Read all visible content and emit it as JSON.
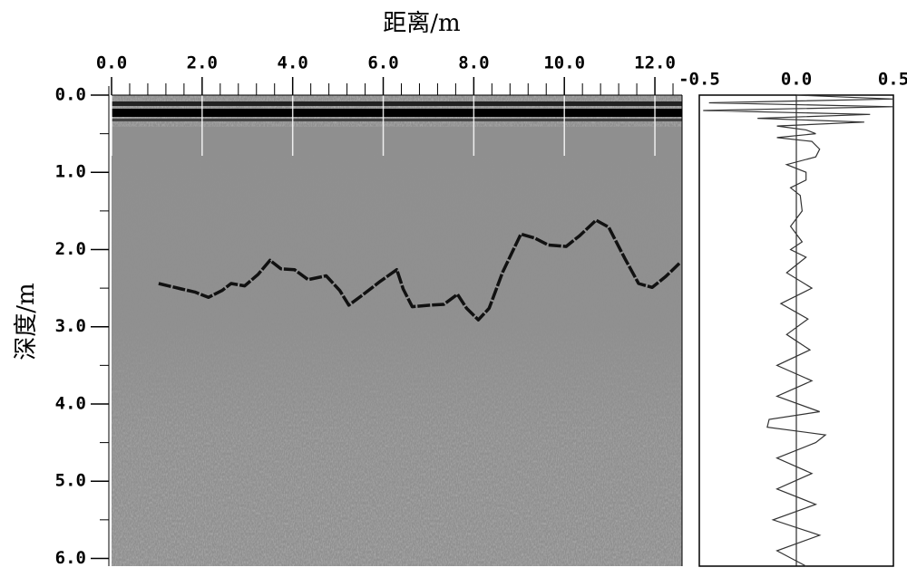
{
  "chart_data": [
    {
      "type": "line",
      "x_label": "距离/m",
      "y_label": "深度/m",
      "xlim": [
        0,
        12.6
      ],
      "ylim": [
        0,
        6.1
      ],
      "y_inverted": true,
      "xticks": [
        {
          "value": 0,
          "label": "0.0"
        },
        {
          "value": 2,
          "label": "2.0"
        },
        {
          "value": 4,
          "label": "4.0"
        },
        {
          "value": 6,
          "label": "6.0"
        },
        {
          "value": 8,
          "label": "8.0"
        },
        {
          "value": 10,
          "label": "10.0"
        },
        {
          "value": 12,
          "label": "12.0"
        }
      ],
      "yticks": [
        {
          "value": 0,
          "label": "0.0"
        },
        {
          "value": 1,
          "label": "1.0"
        },
        {
          "value": 2,
          "label": "2.0"
        },
        {
          "value": 3,
          "label": "3.0"
        },
        {
          "value": 4,
          "label": "4.0"
        },
        {
          "value": 5,
          "label": "5.0"
        },
        {
          "value": 6,
          "label": "6.0"
        }
      ],
      "color": "#111111",
      "x": [
        1.04,
        1.54,
        1.84,
        2.14,
        2.44,
        2.64,
        2.94,
        3.24,
        3.5,
        3.74,
        4.04,
        4.34,
        4.74,
        5.04,
        5.24,
        5.54,
        5.94,
        6.3,
        6.44,
        6.64,
        7.04,
        7.34,
        7.64,
        7.84,
        8.1,
        8.34,
        8.64,
        9.04,
        9.34,
        9.64,
        10.04,
        10.34,
        10.7,
        10.98,
        11.34,
        11.64,
        11.94,
        12.24,
        12.54
      ],
      "values": [
        2.44,
        2.51,
        2.55,
        2.62,
        2.53,
        2.44,
        2.47,
        2.32,
        2.14,
        2.25,
        2.26,
        2.39,
        2.34,
        2.53,
        2.72,
        2.59,
        2.41,
        2.26,
        2.51,
        2.74,
        2.72,
        2.71,
        2.58,
        2.76,
        2.91,
        2.76,
        2.29,
        1.8,
        1.85,
        1.94,
        1.96,
        1.82,
        1.62,
        1.71,
        2.12,
        2.44,
        2.49,
        2.35,
        2.18
      ]
    },
    {
      "type": "trace",
      "xlim": [
        -0.5,
        0.5
      ],
      "ylim": [
        0,
        6.1
      ],
      "xticks": [
        -0.5,
        {
          "value": 0,
          "label": "0.0"
        },
        0.5
      ],
      "color": "#333333",
      "depth": [
        0.0,
        0.05,
        0.1,
        0.15,
        0.2,
        0.25,
        0.3,
        0.35,
        0.4,
        0.45,
        0.5,
        0.55,
        0.6,
        0.7,
        0.8,
        0.9,
        1.0,
        1.1,
        1.2,
        1.3,
        1.5,
        1.7,
        1.9,
        2.0,
        2.1,
        2.3,
        2.5,
        2.7,
        2.9,
        3.1,
        3.3,
        3.5,
        3.7,
        3.9,
        4.1,
        4.2,
        4.3,
        4.4,
        4.5,
        4.7,
        4.9,
        5.1,
        5.3,
        5.5,
        5.7,
        5.9,
        6.1
      ],
      "values": [
        0,
        0.5,
        -0.45,
        0.5,
        -0.48,
        0.38,
        -0.2,
        0.35,
        -0.1,
        0.05,
        0.1,
        -0.1,
        0.08,
        0.12,
        0.1,
        -0.05,
        0.05,
        0.05,
        -0.03,
        0.02,
        0.03,
        -0.03,
        0.03,
        -0.03,
        0.05,
        -0.05,
        0.08,
        -0.08,
        0.06,
        -0.05,
        0.07,
        -0.1,
        0.08,
        -0.1,
        0.12,
        -0.14,
        -0.15,
        0.15,
        0.1,
        -0.1,
        0.08,
        -0.1,
        0.1,
        -0.12,
        0.12,
        -0.1,
        0.05
      ]
    }
  ]
}
